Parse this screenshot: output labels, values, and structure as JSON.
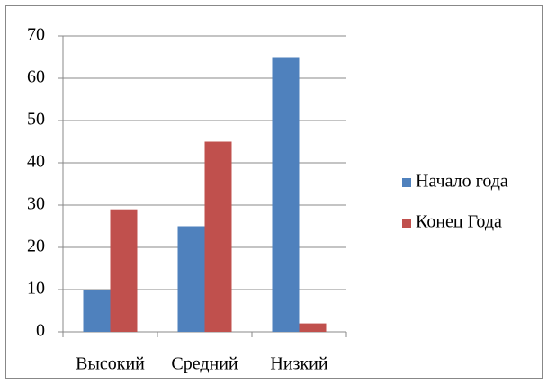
{
  "chart_data": {
    "type": "bar",
    "categories": [
      "Высокий",
      "Средний",
      "Низкий"
    ],
    "series": [
      {
        "name": "Начало года",
        "color": "#4f81bd",
        "values": [
          10,
          25,
          65
        ]
      },
      {
        "name": "Конец Года",
        "color": "#c0504d",
        "values": [
          29,
          45,
          2
        ]
      }
    ],
    "ylim": [
      0,
      70
    ],
    "yticks": [
      0,
      10,
      20,
      30,
      40,
      50,
      60,
      70
    ],
    "grid": true,
    "legend": "right"
  }
}
